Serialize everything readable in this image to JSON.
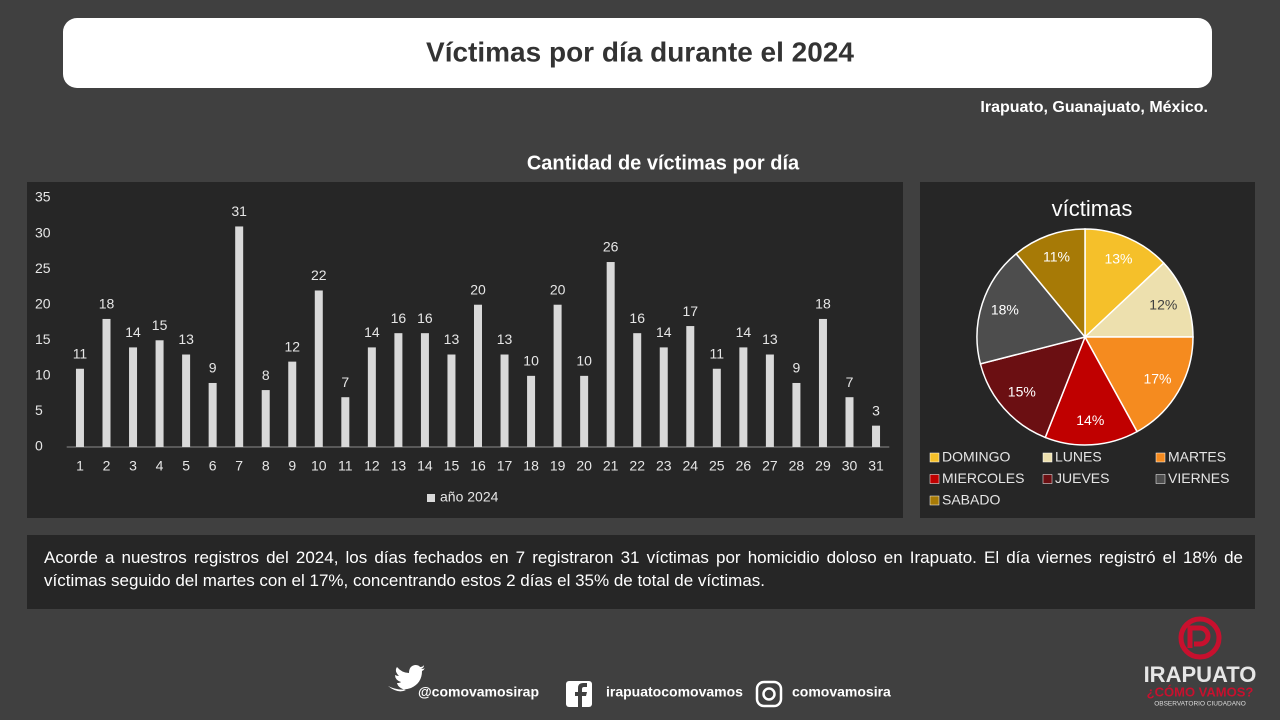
{
  "header": {
    "title": "Víctimas por día durante el 2024",
    "location": "Irapuato, Guanajuato, México."
  },
  "chart_data": [
    {
      "type": "bar",
      "title": "Cantidad de víctimas por día",
      "categories": [
        "1",
        "2",
        "3",
        "4",
        "5",
        "6",
        "7",
        "8",
        "9",
        "10",
        "11",
        "12",
        "13",
        "14",
        "15",
        "16",
        "17",
        "18",
        "19",
        "20",
        "21",
        "22",
        "23",
        "24",
        "25",
        "26",
        "27",
        "28",
        "29",
        "30",
        "31"
      ],
      "series": [
        {
          "name": "año 2024",
          "color": "#d9d9d9",
          "values": [
            11,
            18,
            14,
            15,
            13,
            9,
            31,
            8,
            12,
            22,
            7,
            14,
            16,
            16,
            13,
            20,
            13,
            10,
            20,
            10,
            26,
            16,
            14,
            17,
            11,
            14,
            13,
            9,
            18,
            7,
            3
          ]
        }
      ],
      "ylim": [
        0,
        35
      ],
      "yticks": [
        0,
        5,
        10,
        15,
        20,
        25,
        30,
        35
      ],
      "grid": false,
      "legend": "bottom"
    },
    {
      "type": "pie",
      "title": "víctimas",
      "categories": [
        "DOMINGO",
        "LUNES",
        "MARTES",
        "MIERCOLES",
        "JUEVES",
        "VIERNES",
        "SABADO"
      ],
      "values": [
        13,
        12,
        17,
        14,
        15,
        18,
        11
      ],
      "value_labels": [
        "13%",
        "12%",
        "17%",
        "14%",
        "15%",
        "18%",
        "11%"
      ],
      "colors": [
        "#f5c02a",
        "#ede0ae",
        "#f58b1f",
        "#c00000",
        "#6b0f12",
        "#4d4d4d",
        "#a77a06"
      ],
      "legend": "bottom"
    }
  ],
  "summary": "Acorde a nuestros registros del  2024, los días fechados en 7 registraron 31 víctimas por homicidio doloso en Irapuato. El día viernes registró el 18% de víctimas seguido del martes con el 17%, concentrando estos 2 días el 35% de total de víctimas.",
  "footer": {
    "twitter": "@comovamosirap",
    "facebook": "irapuatocomovamos",
    "instagram": "comovamosira",
    "logo_name": "IRAPUATO",
    "logo_tagline": "¿CÓMO VAMOS?",
    "logo_subtitle": "OBSERVATORIO CIUDADANO"
  }
}
